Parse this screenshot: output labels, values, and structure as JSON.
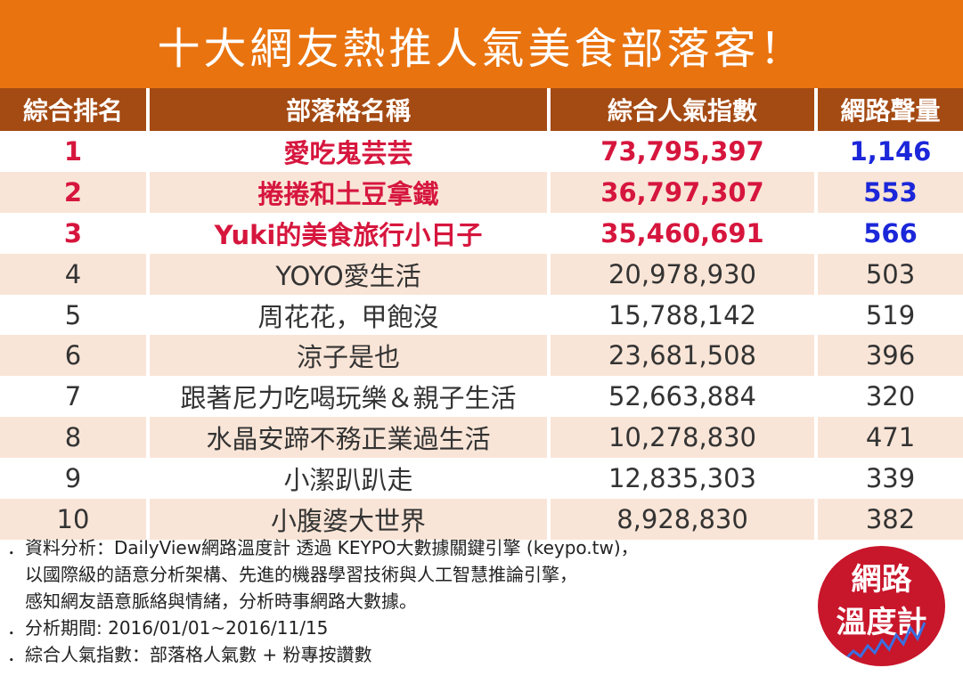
{
  "title": "十大網友熱推人氣美食部落客！",
  "headers": [
    "綜合排名",
    "部落格名稱",
    "綜合人氣指數",
    "網路聲量"
  ],
  "rows": [
    {
      "rank": "1",
      "name": "愛吃鬼芸芸",
      "index": "73,795,397",
      "volume": "1,146"
    },
    {
      "rank": "2",
      "name": "捲捲和土豆拿鐵",
      "index": "36,797,307",
      "volume": "553"
    },
    {
      "rank": "3",
      "name": "Yuki的美食旅行小日子",
      "index": "35,460,691",
      "volume": "566"
    },
    {
      "rank": "4",
      "name": "YOYO愛生活",
      "index": "20,978,930",
      "volume": "503"
    },
    {
      "rank": "5",
      "name": "周花花，甲飽沒",
      "index": "15,788,142",
      "volume": "519"
    },
    {
      "rank": "6",
      "name": "涼子是也",
      "index": "23,681,508",
      "volume": "396"
    },
    {
      "rank": "7",
      "name": "跟著尼力吃喝玩樂＆親子生活",
      "index": "52,663,884",
      "volume": "320"
    },
    {
      "rank": "8",
      "name": "水晶安蹄不務正業過生活",
      "index": "10,278,830",
      "volume": "471"
    },
    {
      "rank": "9",
      "name": "小潔趴趴走",
      "index": "12,835,303",
      "volume": "339"
    },
    {
      "rank": "10",
      "name": "小腹婆大世界",
      "index": "8,928,830",
      "volume": "382"
    }
  ],
  "notes": [
    "．資料分析：DailyView網路溫度計 透過 KEYPO大數據關鍵引擎 (keypo.tw)，",
    "　以國際級的語意分析架構、先進的機器學習技術與人工智慧推論引擎，",
    "　感知網友語意脈絡與情緒，分析時事網路大數據。",
    "．分析期間: 2016/01/01~2016/11/15",
    "．綜合人氣指數：部落格人氣數 + 粉專按讚數"
  ],
  "logo": {
    "line1": "網路",
    "line2": "溫度計",
    "icon": "line-graph-icon"
  },
  "colors": {
    "title_bg": "#e9730f",
    "header_bg": "#a44a13",
    "row_alt": "#f9e5d7",
    "top_red": "#d6163d",
    "top_blue": "#1b27d9",
    "logo_bg": "#c8162b"
  }
}
